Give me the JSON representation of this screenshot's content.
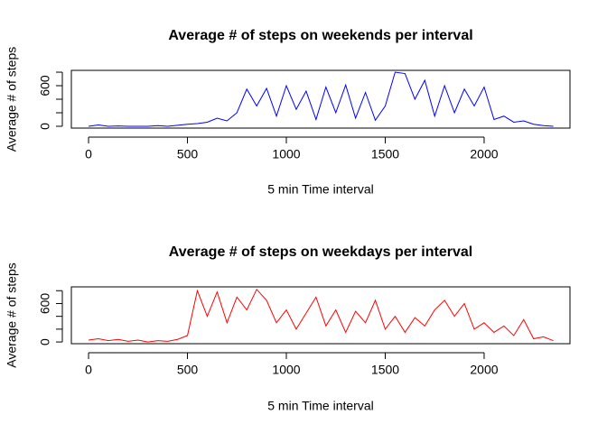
{
  "chart_data": [
    {
      "type": "line",
      "title": "Average # of steps on weekends per interval",
      "x_label": "5 min Time interval",
      "y_label": "Average # of steps",
      "x": [
        0,
        50,
        100,
        150,
        200,
        250,
        300,
        350,
        400,
        450,
        500,
        550,
        600,
        650,
        700,
        750,
        800,
        850,
        900,
        950,
        1000,
        1050,
        1100,
        1150,
        1200,
        1250,
        1300,
        1350,
        1400,
        1450,
        1500,
        1550,
        1600,
        1650,
        1700,
        1750,
        1800,
        1850,
        1900,
        1950,
        2000,
        2050,
        2100,
        2150,
        2200,
        2250,
        2300,
        2350
      ],
      "series": [
        {
          "name": "weekend",
          "color": "#0000ff",
          "values": [
            0,
            20,
            0,
            5,
            0,
            0,
            0,
            10,
            0,
            15,
            30,
            40,
            60,
            120,
            80,
            200,
            550,
            300,
            560,
            150,
            600,
            250,
            520,
            100,
            580,
            200,
            610,
            120,
            500,
            90,
            300,
            800,
            780,
            400,
            680,
            150,
            600,
            200,
            550,
            300,
            580,
            100,
            150,
            60,
            80,
            30,
            10,
            0
          ]
        }
      ],
      "xlim": [
        -87,
        2434
      ],
      "xticks": [
        0,
        500,
        1000,
        1500,
        2000
      ],
      "ylim": [
        -27,
        827
      ],
      "yticks": [
        0,
        600
      ],
      "minor_yticks": [
        200,
        400,
        800
      ]
    },
    {
      "type": "line",
      "title": "Average # of steps on weekdays per interval",
      "x_label": "5 min Time interval",
      "y_label": "Average # of steps",
      "x": [
        0,
        50,
        100,
        150,
        200,
        250,
        300,
        350,
        400,
        450,
        500,
        550,
        600,
        650,
        700,
        750,
        800,
        850,
        900,
        950,
        1000,
        1050,
        1100,
        1150,
        1200,
        1250,
        1300,
        1350,
        1400,
        1450,
        1500,
        1550,
        1600,
        1650,
        1700,
        1750,
        1800,
        1850,
        1900,
        1950,
        2000,
        2050,
        2100,
        2150,
        2200,
        2250,
        2300,
        2350
      ],
      "series": [
        {
          "name": "weekday",
          "color": "#ff0000",
          "values": [
            30,
            50,
            20,
            40,
            10,
            30,
            0,
            20,
            10,
            40,
            100,
            800,
            400,
            780,
            300,
            700,
            500,
            820,
            650,
            300,
            500,
            200,
            450,
            700,
            250,
            500,
            150,
            480,
            300,
            650,
            200,
            400,
            150,
            380,
            250,
            500,
            650,
            400,
            600,
            200,
            300,
            150,
            250,
            100,
            350,
            50,
            80,
            20
          ]
        }
      ],
      "xlim": [
        -87,
        2434
      ],
      "xticks": [
        0,
        500,
        1000,
        1500,
        2000
      ],
      "ylim": [
        -27,
        860
      ],
      "yticks": [
        0,
        600
      ],
      "minor_yticks": [
        200,
        400,
        800
      ]
    }
  ]
}
